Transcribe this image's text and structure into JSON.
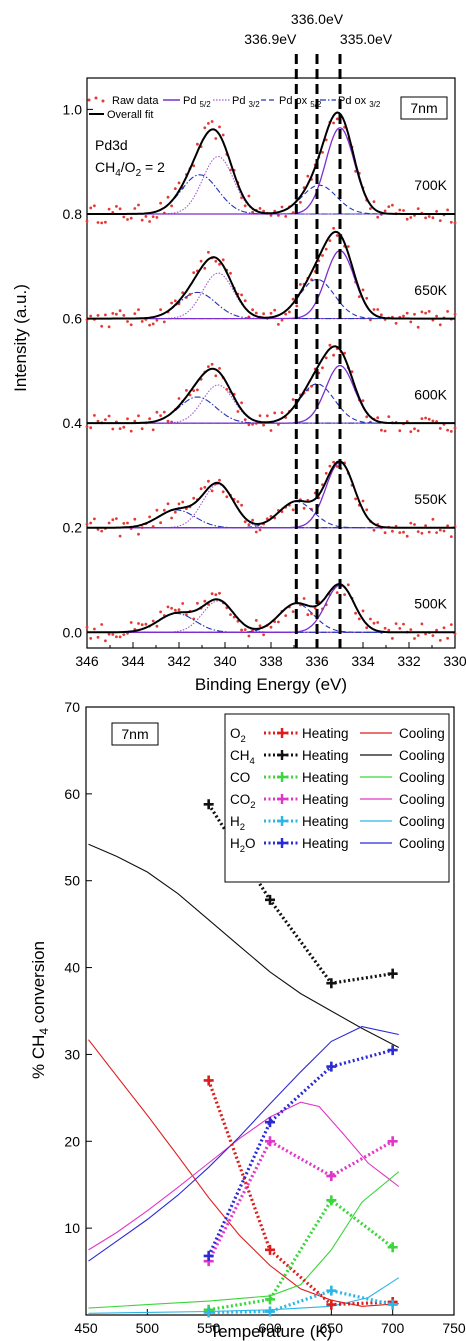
{
  "colors": {
    "raw": "#e53935",
    "pd52": "#7b2fd0",
    "pd32": "#a15bd6",
    "pdox": "#2434b8",
    "fit": "#000000",
    "O2": "#e01b1b",
    "CH4": "#111111",
    "CO": "#3bd63b",
    "CO2": "#e236c8",
    "H2": "#2bb6e6",
    "H2O": "#2b2bd6"
  },
  "chart_data": [
    {
      "type": "line",
      "xlabel": "Binding Energy (eV)",
      "ylabel": "Intensity (a.u.)",
      "xlim": [
        346,
        330
      ],
      "ylim": [
        -0.03,
        1.06
      ],
      "x_reversed": true,
      "x_ticks": [
        "346",
        "344",
        "342",
        "340",
        "338",
        "336",
        "334",
        "332",
        "330"
      ],
      "y_ticks": [
        "0.0",
        "0.2",
        "0.4",
        "0.6",
        "0.8",
        "1.0"
      ],
      "box_label": "7nm",
      "annotation_1": "Pd3d",
      "annotation_2": "CH4/O2 = 2",
      "reference_lines": [
        {
          "x": 336.9,
          "label": "336.9eV"
        },
        {
          "x": 336.0,
          "label": "336.0eV"
        },
        {
          "x": 335.0,
          "label": "335.0eV"
        }
      ],
      "legend": {
        "raw": "Raw data",
        "pd52": "Pd 5/2",
        "pd32": "Pd 3/2",
        "pdox52": "Pd ox 5/2",
        "pdox32": "Pd ox 3/2",
        "fit": "Overall fit"
      },
      "spectra": [
        {
          "label": "700K",
          "offset": 0.8,
          "pd52_amp": 0.165,
          "pd32_amp": 0.11,
          "ox52_amp": 0.055,
          "ox32_amp": 0.075,
          "ox_center": 335.9
        },
        {
          "label": "650K",
          "offset": 0.6,
          "pd52_amp": 0.13,
          "pd32_amp": 0.087,
          "ox52_amp": 0.075,
          "ox32_amp": 0.05,
          "ox_center": 336.0
        },
        {
          "label": "600K",
          "offset": 0.4,
          "pd52_amp": 0.11,
          "pd32_amp": 0.073,
          "ox52_amp": 0.075,
          "ox32_amp": 0.05,
          "ox_center": 336.0
        },
        {
          "label": "550K",
          "offset": 0.2,
          "pd52_amp": 0.125,
          "pd32_amp": 0.083,
          "ox52_amp": 0.05,
          "ox32_amp": 0.034,
          "ox_center": 336.9
        },
        {
          "label": "500K",
          "offset": 0.0,
          "pd52_amp": 0.09,
          "pd32_amp": 0.06,
          "ox52_amp": 0.055,
          "ox32_amp": 0.036,
          "ox_center": 336.9
        }
      ]
    },
    {
      "type": "line",
      "xlabel": "Temperature (K)",
      "ylabel": "% CH4 conversion",
      "xlim": [
        450,
        750
      ],
      "ylim": [
        0,
        70
      ],
      "x_ticks": [
        450,
        500,
        550,
        600,
        650,
        700,
        750
      ],
      "y_ticks": [
        10,
        20,
        30,
        40,
        50,
        60,
        70
      ],
      "box_label": "7nm",
      "legend_heating": "Heating",
      "legend_cooling": "Cooling",
      "species": [
        "O2",
        "CH4",
        "CO",
        "CO2",
        "H2",
        "H2O"
      ],
      "heating": {
        "x": [
          550,
          600,
          650,
          700
        ],
        "O2": [
          27.0,
          7.5,
          1.2,
          1.5
        ],
        "CH4": [
          58.8,
          47.8,
          38.2,
          39.3
        ],
        "CO": [
          0.6,
          1.8,
          13.2,
          7.8
        ],
        "CO2": [
          6.2,
          20.0,
          16.0,
          20.0
        ],
        "H2": [
          0.3,
          0.4,
          2.8,
          1.2
        ],
        "H2O": [
          6.8,
          22.2,
          28.6,
          30.5
        ]
      },
      "cooling": {
        "O2": {
          "x": [
            452,
            475,
            500,
            525,
            550,
            575,
            600,
            625,
            650,
            675,
            705
          ],
          "y": [
            31.7,
            27.5,
            23.0,
            18.3,
            13.5,
            9.2,
            5.7,
            3.0,
            1.7,
            1.0,
            1.3
          ]
        },
        "CH4": {
          "x": [
            452,
            475,
            500,
            525,
            550,
            575,
            600,
            625,
            650,
            675,
            705
          ],
          "y": [
            54.2,
            52.8,
            51.0,
            48.5,
            45.5,
            42.5,
            39.5,
            37.0,
            35.0,
            33.0,
            30.8
          ]
        },
        "CO": {
          "x": [
            452,
            500,
            550,
            600,
            625,
            650,
            675,
            705
          ],
          "y": [
            0.8,
            1.2,
            1.6,
            2.2,
            3.5,
            7.5,
            13.0,
            16.5
          ]
        },
        "CO2": {
          "x": [
            452,
            475,
            500,
            525,
            550,
            575,
            600,
            625,
            640,
            660,
            680,
            705
          ],
          "y": [
            7.5,
            9.5,
            12.0,
            14.7,
            17.5,
            20.3,
            22.8,
            24.5,
            24.0,
            20.8,
            17.5,
            14.8
          ]
        },
        "H2": {
          "x": [
            452,
            500,
            550,
            600,
            650,
            680,
            705
          ],
          "y": [
            0.2,
            0.3,
            0.4,
            0.6,
            1.0,
            2.0,
            4.3
          ]
        },
        "H2O": {
          "x": [
            452,
            475,
            500,
            525,
            550,
            575,
            600,
            625,
            650,
            675,
            705
          ],
          "y": [
            6.2,
            8.5,
            11.0,
            13.8,
            17.0,
            20.5,
            24.3,
            28.0,
            31.5,
            33.2,
            32.3
          ]
        }
      }
    }
  ]
}
